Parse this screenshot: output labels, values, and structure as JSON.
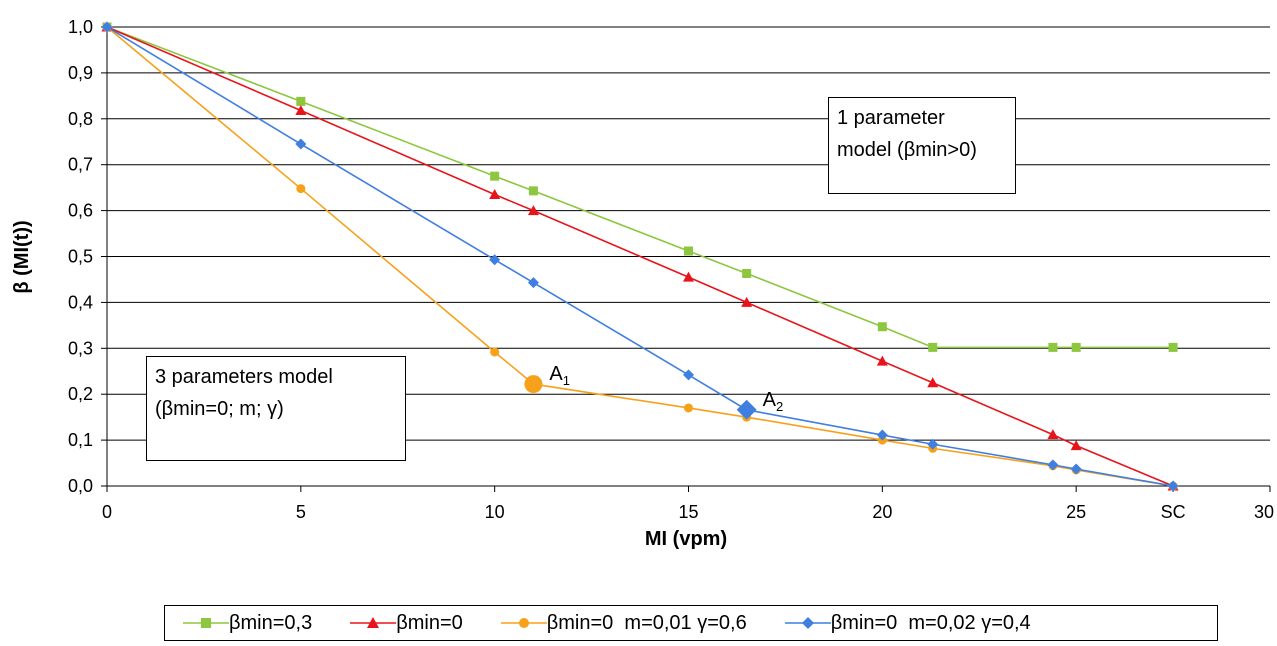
{
  "chart_data": {
    "type": "line",
    "xlabel": "MI (vpm)",
    "ylabel": "β (MI(t))",
    "xlim": [
      0,
      30
    ],
    "ylim": [
      0,
      1.0
    ],
    "x_ticks": [
      "0",
      "5",
      "10",
      "15",
      "20",
      "25",
      "SC",
      "30"
    ],
    "x_tick_values": [
      0,
      5,
      10,
      15,
      20,
      25,
      27.5,
      30
    ],
    "y_ticks": [
      "0,0",
      "0,1",
      "0,2",
      "0,3",
      "0,4",
      "0,5",
      "0,6",
      "0,7",
      "0,8",
      "0,9",
      "1,0"
    ],
    "y_tick_values": [
      0,
      0.1,
      0.2,
      0.3,
      0.4,
      0.5,
      0.6,
      0.7,
      0.8,
      0.9,
      1.0
    ],
    "grid": "horizontal",
    "legend_position": "bottom",
    "series": [
      {
        "name": "βmin=0,3",
        "color": "#8DC63F",
        "marker": "square",
        "x": [
          0,
          5,
          10,
          11,
          15,
          16.5,
          20,
          21.3,
          24.4,
          25,
          27.5
        ],
        "y": [
          1.0,
          0.838,
          0.675,
          0.643,
          0.512,
          0.463,
          0.347,
          0.302,
          0.302,
          0.302,
          0.302
        ]
      },
      {
        "name": "βmin=0",
        "color": "#E8141B",
        "marker": "triangle",
        "x": [
          0,
          5,
          10,
          11,
          15,
          16.5,
          20,
          21.3,
          24.4,
          25,
          27.5
        ],
        "y": [
          1.0,
          0.818,
          0.635,
          0.6,
          0.455,
          0.4,
          0.272,
          0.225,
          0.112,
          0.088,
          0.0
        ]
      },
      {
        "name": "βmin=0  m=0,01 γ=0,6",
        "color": "#F7A11A",
        "marker": "circle",
        "x": [
          0,
          5,
          10,
          11,
          15,
          16.5,
          20,
          21.3,
          24.4,
          25,
          27.5
        ],
        "y": [
          1.0,
          0.648,
          0.292,
          0.222,
          0.17,
          0.15,
          0.1,
          0.082,
          0.044,
          0.035,
          0.0
        ]
      },
      {
        "name": "βmin=0  m=0,02 γ=0,4",
        "color": "#3F7FE0",
        "marker": "diamond",
        "x": [
          0,
          5,
          10,
          11,
          15,
          16.5,
          20,
          21.3,
          24.4,
          25,
          27.5
        ],
        "y": [
          1.0,
          0.745,
          0.493,
          0.443,
          0.242,
          0.166,
          0.111,
          0.091,
          0.046,
          0.037,
          0.0
        ]
      }
    ],
    "highlights": [
      {
        "label": "A",
        "subscript": "1",
        "series": 2,
        "x": 11,
        "y": 0.222
      },
      {
        "label": "A",
        "subscript": "2",
        "series": 3,
        "x": 16.5,
        "y": 0.166
      }
    ],
    "annotations": [
      {
        "lines": [
          "1 parameter",
          "model (βmin>0)"
        ]
      },
      {
        "lines": [
          "3 parameters model",
          "(βmin=0; m; γ)"
        ]
      }
    ]
  }
}
